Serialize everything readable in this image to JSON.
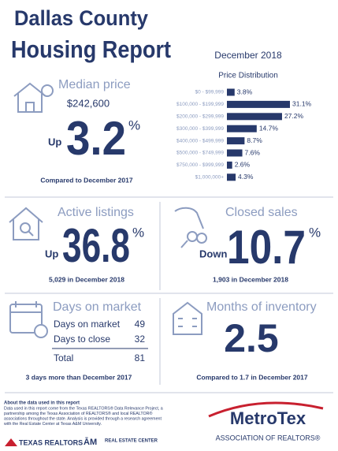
{
  "header": {
    "title_line1": "Dallas County",
    "title_line2": "Housing Report",
    "date": "December 2018"
  },
  "median_price": {
    "heading": "Median price",
    "value": "$242,600",
    "direction": "Up",
    "change": "3.2",
    "unit": "%",
    "note": "Compared to December 2017"
  },
  "price_distribution": {
    "title": "Price Distribution",
    "categories": [
      "$0 - $99,999",
      "$100,000 - $199,999",
      "$200,000 - $299,999",
      "$300,000 - $399,999",
      "$400,000 - $499,999",
      "$500,000 - $749,999",
      "$750,000 - $999,999",
      "$1,000,000+"
    ],
    "values": [
      3.8,
      31.1,
      27.2,
      14.7,
      8.7,
      7.6,
      2.6,
      4.3
    ],
    "value_labels": [
      "3.8%",
      "31.1%",
      "27.2%",
      "14.7%",
      "8.7%",
      "7.6%",
      "2.6%",
      "4.3%"
    ],
    "color": "#27396b"
  },
  "active_listings": {
    "heading": "Active listings",
    "direction": "Up",
    "change": "36.8",
    "unit": "%",
    "note": "5,029 in December 2018"
  },
  "closed_sales": {
    "heading": "Closed sales",
    "direction": "Down",
    "change": "10.7",
    "unit": "%",
    "note": "1,903 in December 2018"
  },
  "days_on_market": {
    "heading": "Days on market",
    "rows": [
      [
        "Days on market",
        "49"
      ],
      [
        "Days to close",
        "32"
      ],
      [
        "Total",
        "81"
      ]
    ],
    "note": "3 days more than December 2017"
  },
  "months_of_inventory": {
    "heading": "Months of inventory",
    "value": "2.5",
    "note": "Compared to 1.7 in December 2017"
  },
  "footer": {
    "heading": "About the data used in this report",
    "lines": [
      "Data used in this report come from the Texas REALTORS® Data Relevance Project, a",
      "partnership among the Texas Association of REALTORS® and local REALTOR®",
      "associations throughout the state. Analysis is provided through a research agreement",
      "with the Real Estate Center at Texas A&M University."
    ],
    "logo_texas_realtors": "TEXAS REALTORS",
    "logo_real_estate_center": "REAL ESTATE CENTER",
    "logo_metrotex": "MetroTex",
    "logo_metrotex_subtitle": "ASSOCIATION OF REALTORS®"
  }
}
